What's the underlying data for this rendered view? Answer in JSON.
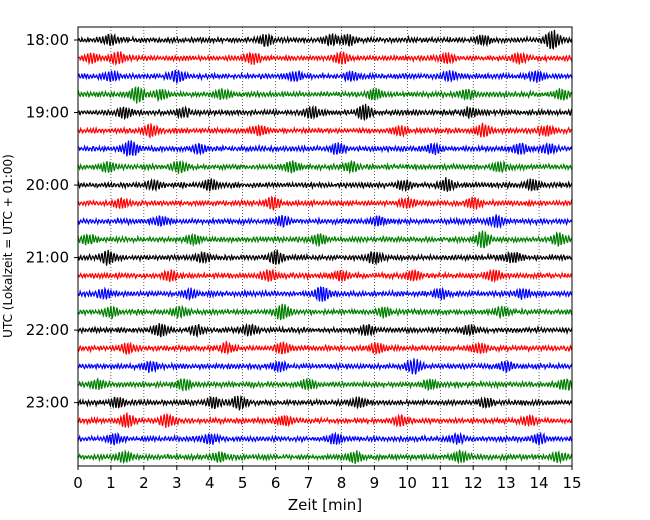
{
  "chart_data": {
    "type": "line",
    "title": "",
    "xlabel": "Zeit  [min]",
    "ylabel": "UTC (Lokalzeit = UTC + 01:00)",
    "xlim": [
      0,
      15
    ],
    "x_ticks": [
      "0",
      "1",
      "2",
      "3",
      "4",
      "5",
      "6",
      "7",
      "8",
      "9",
      "10",
      "11",
      "12",
      "13",
      "14",
      "15"
    ],
    "y_tick_labels": [
      "18:00",
      "19:00",
      "20:00",
      "21:00",
      "22:00",
      "23:00"
    ],
    "grid": "vertical dotted",
    "trace_interval_min": 15,
    "trace_start": "18:00",
    "trace_count": 24,
    "trace_colors": [
      "#000000",
      "#ff0000",
      "#0000ff",
      "#008000"
    ],
    "series": [
      {
        "row": 0,
        "color": "#000000",
        "bursts": [
          [
            1.0,
            0.45
          ],
          [
            5.7,
            0.55
          ],
          [
            7.7,
            0.5
          ],
          [
            8.2,
            0.45
          ],
          [
            12.3,
            0.45
          ],
          [
            14.4,
            0.95
          ]
        ]
      },
      {
        "row": 1,
        "color": "#ff0000",
        "bursts": [
          [
            0.4,
            0.4
          ],
          [
            1.2,
            0.55
          ],
          [
            5.3,
            0.5
          ],
          [
            8.0,
            0.55
          ],
          [
            11.2,
            0.4
          ],
          [
            13.4,
            0.45
          ]
        ]
      },
      {
        "row": 2,
        "color": "#0000ff",
        "bursts": [
          [
            1.0,
            0.45
          ],
          [
            3.0,
            0.55
          ],
          [
            6.6,
            0.45
          ],
          [
            8.3,
            0.45
          ],
          [
            11.3,
            0.45
          ],
          [
            13.9,
            0.45
          ]
        ]
      },
      {
        "row": 3,
        "color": "#008000",
        "bursts": [
          [
            1.8,
            0.75
          ],
          [
            2.5,
            0.45
          ],
          [
            4.4,
            0.45
          ],
          [
            9.0,
            0.5
          ],
          [
            11.8,
            0.45
          ],
          [
            14.7,
            0.5
          ]
        ]
      },
      {
        "row": 4,
        "color": "#000000",
        "bursts": [
          [
            1.4,
            0.5
          ],
          [
            3.2,
            0.45
          ],
          [
            7.1,
            0.55
          ],
          [
            8.7,
            0.75
          ],
          [
            11.9,
            0.45
          ]
        ]
      },
      {
        "row": 5,
        "color": "#ff0000",
        "bursts": [
          [
            2.2,
            0.6
          ],
          [
            5.5,
            0.45
          ],
          [
            9.8,
            0.45
          ],
          [
            12.3,
            0.6
          ],
          [
            14.2,
            0.45
          ]
        ]
      },
      {
        "row": 6,
        "color": "#0000ff",
        "bursts": [
          [
            1.6,
            0.8
          ],
          [
            3.7,
            0.45
          ],
          [
            7.9,
            0.5
          ],
          [
            10.8,
            0.45
          ],
          [
            13.4,
            0.5
          ],
          [
            14.3,
            0.45
          ]
        ]
      },
      {
        "row": 7,
        "color": "#008000",
        "bursts": [
          [
            0.9,
            0.45
          ],
          [
            3.1,
            0.55
          ],
          [
            6.5,
            0.5
          ],
          [
            8.3,
            0.45
          ],
          [
            12.8,
            0.5
          ]
        ]
      },
      {
        "row": 8,
        "color": "#000000",
        "bursts": [
          [
            2.3,
            0.45
          ],
          [
            4.0,
            0.5
          ],
          [
            9.9,
            0.45
          ],
          [
            11.2,
            0.6
          ],
          [
            13.8,
            0.45
          ]
        ]
      },
      {
        "row": 9,
        "color": "#ff0000",
        "bursts": [
          [
            1.3,
            0.45
          ],
          [
            5.9,
            0.6
          ],
          [
            10.0,
            0.45
          ],
          [
            12.0,
            0.5
          ]
        ]
      },
      {
        "row": 10,
        "color": "#0000ff",
        "bursts": [
          [
            2.5,
            0.45
          ],
          [
            6.2,
            0.5
          ],
          [
            9.1,
            0.45
          ],
          [
            12.7,
            0.55
          ]
        ]
      },
      {
        "row": 11,
        "color": "#008000",
        "bursts": [
          [
            0.3,
            0.45
          ],
          [
            3.5,
            0.45
          ],
          [
            7.3,
            0.55
          ],
          [
            12.3,
            0.85
          ],
          [
            14.6,
            0.55
          ]
        ]
      },
      {
        "row": 12,
        "color": "#000000",
        "bursts": [
          [
            0.9,
            0.65
          ],
          [
            3.8,
            0.45
          ],
          [
            6.0,
            0.65
          ],
          [
            9.0,
            0.55
          ],
          [
            13.2,
            0.5
          ]
        ]
      },
      {
        "row": 13,
        "color": "#ff0000",
        "bursts": [
          [
            2.8,
            0.45
          ],
          [
            5.8,
            0.55
          ],
          [
            8.0,
            0.45
          ],
          [
            10.2,
            0.5
          ],
          [
            12.6,
            0.55
          ]
        ]
      },
      {
        "row": 14,
        "color": "#0000ff",
        "bursts": [
          [
            0.8,
            0.45
          ],
          [
            3.4,
            0.45
          ],
          [
            7.4,
            0.7
          ],
          [
            11.0,
            0.45
          ],
          [
            13.5,
            0.45
          ]
        ]
      },
      {
        "row": 15,
        "color": "#008000",
        "bursts": [
          [
            1.0,
            0.5
          ],
          [
            3.1,
            0.55
          ],
          [
            6.2,
            0.75
          ],
          [
            9.3,
            0.45
          ],
          [
            12.9,
            0.5
          ]
        ]
      },
      {
        "row": 16,
        "color": "#000000",
        "bursts": [
          [
            2.5,
            0.6
          ],
          [
            3.6,
            0.45
          ],
          [
            5.2,
            0.5
          ],
          [
            8.8,
            0.45
          ],
          [
            11.9,
            0.45
          ]
        ]
      },
      {
        "row": 17,
        "color": "#ff0000",
        "bursts": [
          [
            1.5,
            0.45
          ],
          [
            4.5,
            0.45
          ],
          [
            6.2,
            0.55
          ],
          [
            9.1,
            0.5
          ],
          [
            12.2,
            0.45
          ]
        ]
      },
      {
        "row": 18,
        "color": "#0000ff",
        "bursts": [
          [
            2.2,
            0.45
          ],
          [
            6.1,
            0.45
          ],
          [
            10.2,
            0.7
          ],
          [
            13.0,
            0.45
          ]
        ]
      },
      {
        "row": 19,
        "color": "#008000",
        "bursts": [
          [
            0.6,
            0.45
          ],
          [
            3.2,
            0.5
          ],
          [
            7.0,
            0.45
          ],
          [
            10.7,
            0.45
          ],
          [
            14.8,
            0.55
          ]
        ]
      },
      {
        "row": 20,
        "color": "#000000",
        "bursts": [
          [
            1.2,
            0.45
          ],
          [
            4.1,
            0.5
          ],
          [
            4.9,
            0.6
          ],
          [
            8.5,
            0.45
          ],
          [
            12.4,
            0.45
          ]
        ]
      },
      {
        "row": 21,
        "color": "#ff0000",
        "bursts": [
          [
            1.5,
            0.65
          ],
          [
            2.7,
            0.6
          ],
          [
            6.3,
            0.45
          ],
          [
            9.8,
            0.45
          ],
          [
            13.7,
            0.45
          ]
        ]
      },
      {
        "row": 22,
        "color": "#0000ff",
        "bursts": [
          [
            1.1,
            0.45
          ],
          [
            4.0,
            0.45
          ],
          [
            7.8,
            0.45
          ],
          [
            11.5,
            0.45
          ],
          [
            14.0,
            0.45
          ]
        ]
      },
      {
        "row": 23,
        "color": "#008000",
        "bursts": [
          [
            1.4,
            0.55
          ],
          [
            4.3,
            0.45
          ],
          [
            8.4,
            0.5
          ],
          [
            11.6,
            0.55
          ],
          [
            14.6,
            0.45
          ]
        ]
      }
    ]
  }
}
